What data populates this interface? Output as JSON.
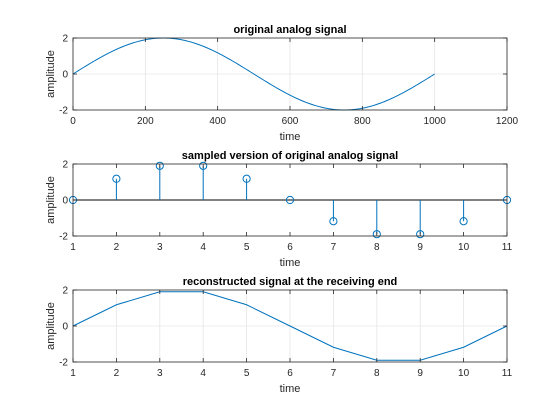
{
  "chart_data": [
    {
      "type": "line",
      "title": "original analog signal",
      "xlabel": "time",
      "ylabel": "amplitude",
      "xlim": [
        0,
        1200
      ],
      "ylim": [
        -2,
        2
      ],
      "xticks": [
        0,
        200,
        400,
        600,
        800,
        1000,
        1200
      ],
      "yticks": [
        -2,
        0,
        2
      ],
      "grid": true,
      "series": [
        {
          "function": "2*sin(2*pi*x/1000)",
          "x_range": [
            0,
            1000
          ],
          "color": "#0072bd"
        }
      ]
    },
    {
      "type": "stem",
      "title": "sampled version of original analog signal",
      "xlabel": "time",
      "ylabel": "amplitude",
      "xlim": [
        1,
        11
      ],
      "ylim": [
        -2,
        2
      ],
      "xticks": [
        1,
        2,
        3,
        4,
        5,
        6,
        7,
        8,
        9,
        10,
        11
      ],
      "yticks": [
        -2,
        0,
        2
      ],
      "grid": false,
      "series": [
        {
          "x": [
            1,
            2,
            3,
            4,
            5,
            6,
            7,
            8,
            9,
            10,
            11
          ],
          "values": [
            0,
            1.18,
            1.9,
            1.9,
            1.18,
            0,
            -1.18,
            -1.9,
            -1.9,
            -1.18,
            0
          ],
          "color": "#0072bd"
        }
      ]
    },
    {
      "type": "line",
      "title": "reconstructed signal at the receiving end",
      "xlabel": "time",
      "ylabel": "amplitude",
      "xlim": [
        1,
        11
      ],
      "ylim": [
        -2,
        2
      ],
      "xticks": [
        1,
        2,
        3,
        4,
        5,
        6,
        7,
        8,
        9,
        10,
        11
      ],
      "yticks": [
        -2,
        0,
        2
      ],
      "grid": true,
      "series": [
        {
          "x": [
            1,
            2,
            3,
            4,
            5,
            6,
            7,
            8,
            9,
            10,
            11
          ],
          "values": [
            0,
            1.18,
            1.9,
            1.9,
            1.18,
            0,
            -1.18,
            -1.9,
            -1.9,
            -1.18,
            0
          ],
          "color": "#0072bd"
        }
      ]
    }
  ]
}
